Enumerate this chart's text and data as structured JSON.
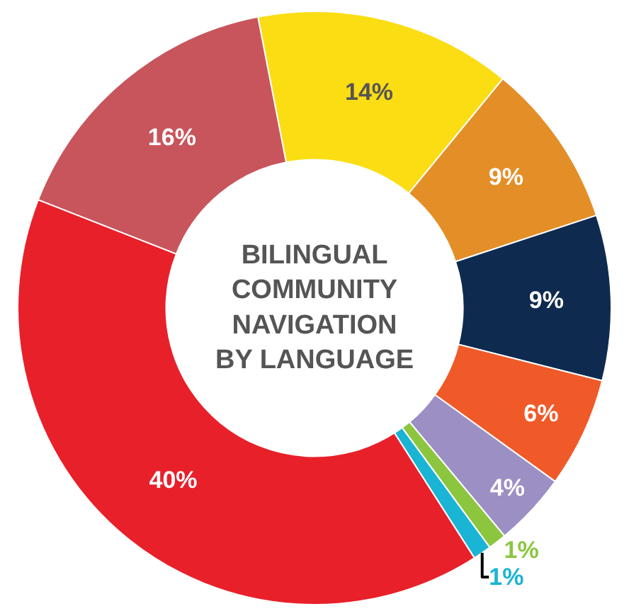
{
  "chart_data": {
    "type": "donut",
    "title": "BILINGUAL COMMUNITY NAVIGATION BY LANGUAGE",
    "categories": [
      null,
      null,
      null,
      null,
      null,
      null,
      null,
      null,
      null
    ],
    "values": [
      14,
      9,
      9,
      6,
      4,
      1,
      1,
      40,
      16
    ],
    "value_labels": [
      "14%",
      "9%",
      "9%",
      "6%",
      "4%",
      "1%",
      "1%",
      "40%",
      "16%"
    ],
    "colors": [
      "#fbdd14",
      "#e48e27",
      "#0f2a4f",
      "#f05a28",
      "#9c8fc4",
      "#8cc63f",
      "#1ab4d4",
      "#e8202a",
      "#c8555c"
    ],
    "legend": false
  }
}
